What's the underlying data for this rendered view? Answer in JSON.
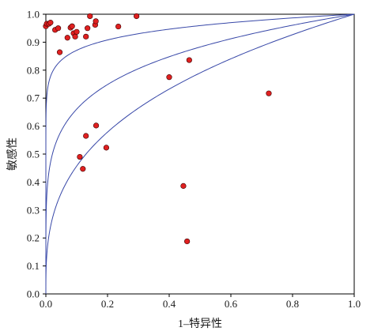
{
  "chart_data": {
    "type": "scatter",
    "xlabel": "1–特异性",
    "ylabel": "敏感性",
    "xlim": [
      0,
      1
    ],
    "ylim": [
      0,
      1
    ],
    "x_ticks": [
      "0.0",
      "0.2",
      "0.4",
      "0.6",
      "0.8",
      "1.0"
    ],
    "y_ticks": [
      "0.0",
      "0.1",
      "0.2",
      "0.3",
      "0.4",
      "0.5",
      "0.6",
      "0.7",
      "0.8",
      "0.9",
      "1.0"
    ],
    "grid": false,
    "point_color": "#e02020",
    "curve_color": "#3848a8",
    "points": [
      {
        "x": 0.0,
        "y": 0.957
      },
      {
        "x": 0.003,
        "y": 0.966
      },
      {
        "x": 0.01,
        "y": 0.966
      },
      {
        "x": 0.015,
        "y": 0.97
      },
      {
        "x": 0.03,
        "y": 0.944
      },
      {
        "x": 0.04,
        "y": 0.95
      },
      {
        "x": 0.045,
        "y": 0.864
      },
      {
        "x": 0.07,
        "y": 0.916
      },
      {
        "x": 0.08,
        "y": 0.952
      },
      {
        "x": 0.085,
        "y": 0.957
      },
      {
        "x": 0.09,
        "y": 0.932
      },
      {
        "x": 0.095,
        "y": 0.92
      },
      {
        "x": 0.1,
        "y": 0.937
      },
      {
        "x": 0.13,
        "y": 0.92
      },
      {
        "x": 0.135,
        "y": 0.95
      },
      {
        "x": 0.143,
        "y": 0.993
      },
      {
        "x": 0.16,
        "y": 0.962
      },
      {
        "x": 0.162,
        "y": 0.975
      },
      {
        "x": 0.235,
        "y": 0.956
      },
      {
        "x": 0.294,
        "y": 0.993
      },
      {
        "x": 0.4,
        "y": 0.775
      },
      {
        "x": 0.465,
        "y": 0.836
      },
      {
        "x": 0.723,
        "y": 0.717
      },
      {
        "x": 0.11,
        "y": 0.49
      },
      {
        "x": 0.12,
        "y": 0.447
      },
      {
        "x": 0.13,
        "y": 0.565
      },
      {
        "x": 0.163,
        "y": 0.602
      },
      {
        "x": 0.196,
        "y": 0.523
      },
      {
        "x": 0.446,
        "y": 0.386
      },
      {
        "x": 0.458,
        "y": 0.188
      }
    ],
    "curves": [
      {
        "shape": 0.06
      },
      {
        "shape": 0.18
      },
      {
        "shape": 0.34
      }
    ]
  }
}
